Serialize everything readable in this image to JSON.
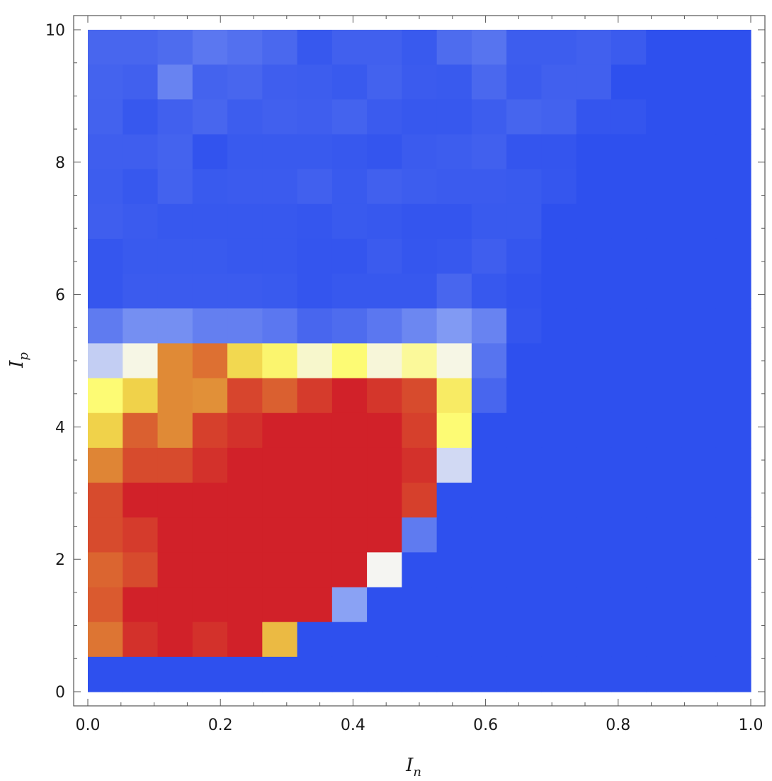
{
  "chart_data": {
    "type": "heatmap",
    "title": "",
    "xlabel": {
      "main": "I",
      "sub": "n"
    },
    "ylabel": {
      "main": "I",
      "sub": "p"
    },
    "xlim": [
      0,
      1
    ],
    "ylim": [
      0,
      10
    ],
    "x_ticks": [
      0.0,
      0.2,
      0.4,
      0.6,
      0.8,
      1.0
    ],
    "x_tick_labels": [
      "0.0",
      "0.2",
      "0.4",
      "0.6",
      "0.8",
      "1.0"
    ],
    "y_ticks": [
      0,
      2,
      4,
      6,
      8,
      10
    ],
    "y_tick_labels": [
      "0",
      "2",
      "4",
      "6",
      "8",
      "10"
    ],
    "grid": false,
    "legend": "none",
    "x_cells": 19,
    "y_cells": 19,
    "colorscale": {
      "min": 0,
      "max": 1,
      "stops": [
        {
          "v": 0.0,
          "color": "#2e50ee"
        },
        {
          "v": 0.15,
          "color": "#4a68ee"
        },
        {
          "v": 0.3,
          "color": "#8aa2f4"
        },
        {
          "v": 0.45,
          "color": "#f5f5f2"
        },
        {
          "v": 0.55,
          "color": "#fdfb74"
        },
        {
          "v": 0.68,
          "color": "#f0d24a"
        },
        {
          "v": 0.8,
          "color": "#e08a36"
        },
        {
          "v": 0.9,
          "color": "#d9552e"
        },
        {
          "v": 1.0,
          "color": "#d12129"
        }
      ]
    },
    "z_rows_top_to_bottom": [
      [
        0.14,
        0.14,
        0.16,
        0.19,
        0.17,
        0.15,
        0.05,
        0.1,
        0.1,
        0.06,
        0.16,
        0.18,
        0.08,
        0.08,
        0.1,
        0.07,
        0.0,
        0.0,
        0.0
      ],
      [
        0.12,
        0.1,
        0.22,
        0.12,
        0.14,
        0.09,
        0.08,
        0.06,
        0.11,
        0.07,
        0.06,
        0.15,
        0.07,
        0.1,
        0.1,
        0.0,
        0.0,
        0.0,
        0.0
      ],
      [
        0.11,
        0.05,
        0.1,
        0.14,
        0.08,
        0.1,
        0.09,
        0.12,
        0.07,
        0.05,
        0.05,
        0.08,
        0.13,
        0.11,
        0.03,
        0.03,
        0.0,
        0.0,
        0.0
      ],
      [
        0.09,
        0.09,
        0.12,
        0.02,
        0.06,
        0.06,
        0.06,
        0.05,
        0.03,
        0.07,
        0.08,
        0.1,
        0.03,
        0.03,
        0.0,
        0.0,
        0.0,
        0.0,
        0.0
      ],
      [
        0.08,
        0.05,
        0.11,
        0.06,
        0.07,
        0.07,
        0.1,
        0.06,
        0.1,
        0.08,
        0.07,
        0.07,
        0.06,
        0.04,
        0.0,
        0.0,
        0.0,
        0.0,
        0.0
      ],
      [
        0.09,
        0.07,
        0.05,
        0.05,
        0.05,
        0.05,
        0.04,
        0.06,
        0.05,
        0.03,
        0.03,
        0.06,
        0.06,
        0.0,
        0.0,
        0.0,
        0.0,
        0.0,
        0.0
      ],
      [
        0.04,
        0.06,
        0.06,
        0.06,
        0.05,
        0.05,
        0.03,
        0.03,
        0.07,
        0.04,
        0.05,
        0.09,
        0.04,
        0.0,
        0.0,
        0.0,
        0.0,
        0.0,
        0.0
      ],
      [
        0.04,
        0.07,
        0.07,
        0.07,
        0.07,
        0.06,
        0.03,
        0.05,
        0.05,
        0.05,
        0.14,
        0.05,
        0.02,
        0.0,
        0.0,
        0.0,
        0.0,
        0.0,
        0.0
      ],
      [
        0.2,
        0.25,
        0.25,
        0.21,
        0.21,
        0.19,
        0.14,
        0.16,
        0.19,
        0.23,
        0.28,
        0.22,
        0.03,
        0.0,
        0.0,
        0.0,
        0.0,
        0.0,
        0.0
      ],
      [
        0.38,
        0.46,
        0.8,
        0.85,
        0.66,
        0.57,
        0.48,
        0.55,
        0.47,
        0.52,
        0.46,
        0.18,
        0.0,
        0.0,
        0.0,
        0.0,
        0.0,
        0.0,
        0.0
      ],
      [
        0.55,
        0.68,
        0.8,
        0.79,
        0.93,
        0.88,
        0.95,
        1.0,
        0.96,
        0.92,
        0.6,
        0.14,
        0.0,
        0.0,
        0.0,
        0.0,
        0.0,
        0.0,
        0.0
      ],
      [
        0.68,
        0.88,
        0.8,
        0.94,
        0.97,
        1.0,
        1.0,
        1.0,
        1.0,
        0.94,
        0.55,
        0.0,
        0.0,
        0.0,
        0.0,
        0.0,
        0.0,
        0.0,
        0.0
      ],
      [
        0.81,
        0.92,
        0.92,
        0.97,
        1.0,
        1.0,
        1.0,
        1.0,
        1.0,
        0.97,
        0.4,
        0.0,
        0.0,
        0.0,
        0.0,
        0.0,
        0.0,
        0.0,
        0.0
      ],
      [
        0.92,
        1.0,
        1.0,
        1.0,
        1.0,
        1.0,
        1.0,
        1.0,
        1.0,
        0.94,
        0.0,
        0.0,
        0.0,
        0.0,
        0.0,
        0.0,
        0.0,
        0.0,
        0.0
      ],
      [
        0.92,
        0.95,
        1.0,
        1.0,
        1.0,
        1.0,
        1.0,
        1.0,
        1.0,
        0.2,
        0.0,
        0.0,
        0.0,
        0.0,
        0.0,
        0.0,
        0.0,
        0.0,
        0.0
      ],
      [
        0.87,
        0.92,
        1.0,
        1.0,
        1.0,
        1.0,
        1.0,
        1.0,
        0.45,
        0.0,
        0.0,
        0.0,
        0.0,
        0.0,
        0.0,
        0.0,
        0.0,
        0.0,
        0.0
      ],
      [
        0.89,
        1.0,
        1.0,
        1.0,
        1.0,
        1.0,
        1.0,
        0.3,
        0.0,
        0.0,
        0.0,
        0.0,
        0.0,
        0.0,
        0.0,
        0.0,
        0.0,
        0.0,
        0.0
      ],
      [
        0.84,
        0.97,
        1.0,
        0.97,
        1.0,
        0.72,
        0.0,
        0.0,
        0.0,
        0.0,
        0.0,
        0.0,
        0.0,
        0.0,
        0.0,
        0.0,
        0.0,
        0.0,
        0.0
      ],
      [
        0.0,
        0.0,
        0.0,
        0.0,
        0.0,
        0.0,
        0.0,
        0.0,
        0.0,
        0.0,
        0.0,
        0.0,
        0.0,
        0.0,
        0.0,
        0.0,
        0.0,
        0.0,
        0.0
      ]
    ]
  }
}
